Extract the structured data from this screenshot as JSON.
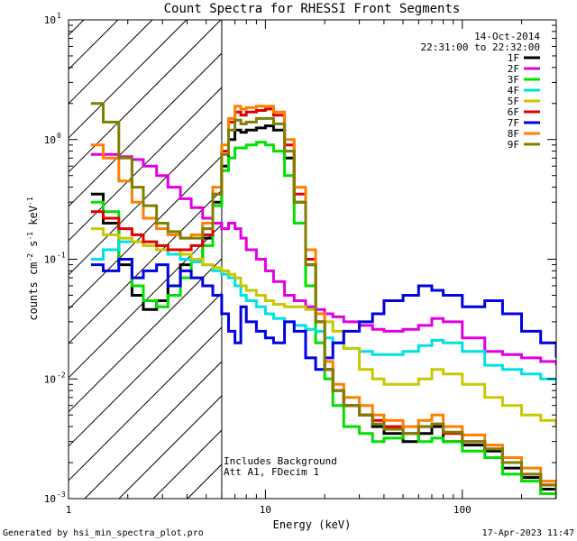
{
  "chart_data": {
    "type": "line",
    "title": "Count Spectra for RHESSI Front Segments",
    "date": "14-Oct-2014",
    "time_range": "22:31:00 to 22:32:00",
    "xlabel": "Energy (keV)",
    "ylabel_parts": [
      "counts cm",
      "-2",
      " s",
      "-1",
      " keV",
      "-1"
    ],
    "x_scale": "log",
    "y_scale": "log",
    "xlim": [
      1,
      300
    ],
    "ylim": [
      0.001,
      10
    ],
    "x_ticks": [
      {
        "value": 1,
        "label": "1"
      },
      {
        "value": 10,
        "label": "10"
      },
      {
        "value": 100,
        "label": "100"
      }
    ],
    "y_ticks": [
      {
        "value": 0.001,
        "base": "10",
        "exp": "-3"
      },
      {
        "value": 0.01,
        "base": "10",
        "exp": "-2"
      },
      {
        "value": 0.1,
        "base": "10",
        "exp": "-1"
      },
      {
        "value": 1,
        "base": "10",
        "exp": "0"
      },
      {
        "value": 10,
        "base": "10",
        "exp": "1"
      }
    ],
    "excluded_region": {
      "x_max": 6,
      "style": "diagonal-hatch"
    },
    "annotations": [
      "Includes Background",
      "Att A1, FDecim 1"
    ],
    "series": [
      {
        "name": "1F",
        "color": "#000000",
        "x": [
          1.3,
          1.5,
          1.8,
          2.1,
          2.4,
          2.8,
          3.2,
          3.7,
          4.2,
          4.8,
          5.4,
          6.0,
          6.5,
          7.0,
          7.5,
          8.0,
          9.0,
          10.0,
          11.0,
          12.5,
          14.0,
          16.0,
          18.0,
          20.0,
          22.0,
          25.0,
          30.0,
          35.0,
          40.0,
          50.0,
          60.0,
          70.0,
          80.0,
          100.0,
          130.0,
          160.0,
          200.0,
          250.0,
          300.0
        ],
        "y": [
          0.35,
          0.2,
          0.09,
          0.05,
          0.038,
          0.045,
          0.06,
          0.09,
          0.1,
          0.15,
          0.3,
          0.6,
          1.0,
          1.2,
          1.15,
          1.2,
          1.25,
          1.3,
          1.2,
          0.7,
          0.3,
          0.09,
          0.03,
          0.012,
          0.008,
          0.006,
          0.005,
          0.004,
          0.0035,
          0.003,
          0.0035,
          0.004,
          0.003,
          0.0028,
          0.0025,
          0.0018,
          0.0015,
          0.0012,
          0.001
        ]
      },
      {
        "name": "2F",
        "color": "#e100e1",
        "x": [
          1.3,
          1.5,
          1.8,
          2.1,
          2.4,
          2.8,
          3.2,
          3.7,
          4.2,
          4.8,
          5.4,
          6.0,
          6.5,
          7.0,
          7.5,
          8.0,
          9.0,
          10.0,
          11.0,
          12.5,
          14.0,
          16.0,
          18.0,
          20.0,
          22.0,
          25.0,
          30.0,
          35.0,
          40.0,
          50.0,
          60.0,
          70.0,
          80.0,
          100.0,
          130.0,
          160.0,
          200.0,
          250.0,
          300.0
        ],
        "y": [
          0.75,
          0.75,
          0.72,
          0.68,
          0.6,
          0.5,
          0.4,
          0.32,
          0.27,
          0.22,
          0.2,
          0.18,
          0.2,
          0.18,
          0.15,
          0.12,
          0.1,
          0.08,
          0.065,
          0.05,
          0.045,
          0.04,
          0.038,
          0.035,
          0.033,
          0.03,
          0.028,
          0.026,
          0.025,
          0.026,
          0.028,
          0.032,
          0.03,
          0.022,
          0.017,
          0.016,
          0.015,
          0.014,
          0.013
        ]
      },
      {
        "name": "3F",
        "color": "#00e100",
        "x": [
          1.3,
          1.5,
          1.8,
          2.1,
          2.4,
          2.8,
          3.2,
          3.7,
          4.2,
          4.8,
          5.4,
          6.0,
          6.5,
          7.0,
          7.5,
          8.0,
          9.0,
          10.0,
          11.0,
          12.5,
          14.0,
          16.0,
          18.0,
          20.0,
          22.0,
          25.0,
          30.0,
          35.0,
          40.0,
          50.0,
          60.0,
          70.0,
          80.0,
          100.0,
          130.0,
          160.0,
          200.0,
          250.0,
          300.0
        ],
        "y": [
          0.3,
          0.25,
          0.1,
          0.06,
          0.045,
          0.04,
          0.05,
          0.07,
          0.1,
          0.13,
          0.28,
          0.55,
          0.7,
          0.85,
          0.85,
          0.9,
          0.95,
          0.9,
          0.8,
          0.5,
          0.2,
          0.06,
          0.02,
          0.01,
          0.006,
          0.004,
          0.0035,
          0.003,
          0.0032,
          0.0035,
          0.003,
          0.0032,
          0.003,
          0.0025,
          0.0022,
          0.0016,
          0.0014,
          0.0011,
          0.001
        ]
      },
      {
        "name": "4F",
        "color": "#00e1e1",
        "x": [
          1.3,
          1.5,
          1.8,
          2.1,
          2.4,
          2.8,
          3.2,
          3.7,
          4.2,
          4.8,
          5.4,
          6.0,
          6.5,
          7.0,
          7.5,
          8.0,
          9.0,
          10.0,
          11.0,
          12.5,
          14.0,
          16.0,
          18.0,
          20.0,
          22.0,
          25.0,
          30.0,
          35.0,
          40.0,
          50.0,
          60.0,
          70.0,
          80.0,
          100.0,
          130.0,
          160.0,
          200.0,
          250.0,
          300.0
        ],
        "y": [
          0.1,
          0.12,
          0.14,
          0.14,
          0.13,
          0.12,
          0.11,
          0.1,
          0.095,
          0.09,
          0.08,
          0.075,
          0.07,
          0.06,
          0.05,
          0.045,
          0.04,
          0.035,
          0.032,
          0.03,
          0.028,
          0.026,
          0.025,
          0.022,
          0.02,
          0.018,
          0.017,
          0.016,
          0.016,
          0.017,
          0.019,
          0.021,
          0.02,
          0.017,
          0.013,
          0.012,
          0.011,
          0.01,
          0.009
        ]
      },
      {
        "name": "5F",
        "color": "#c8c800",
        "x": [
          1.3,
          1.5,
          1.8,
          2.1,
          2.4,
          2.8,
          3.2,
          3.7,
          4.2,
          4.8,
          5.4,
          6.0,
          6.5,
          7.0,
          7.5,
          8.0,
          9.0,
          10.0,
          11.0,
          12.5,
          14.0,
          16.0,
          18.0,
          20.0,
          22.0,
          25.0,
          30.0,
          35.0,
          40.0,
          50.0,
          60.0,
          70.0,
          80.0,
          100.0,
          130.0,
          160.0,
          200.0,
          250.0,
          300.0
        ],
        "y": [
          0.18,
          0.16,
          0.15,
          0.14,
          0.13,
          0.12,
          0.12,
          0.11,
          0.1,
          0.09,
          0.085,
          0.08,
          0.075,
          0.07,
          0.06,
          0.055,
          0.05,
          0.045,
          0.042,
          0.04,
          0.04,
          0.038,
          0.035,
          0.03,
          0.025,
          0.018,
          0.012,
          0.01,
          0.009,
          0.009,
          0.01,
          0.012,
          0.011,
          0.009,
          0.007,
          0.006,
          0.005,
          0.0045,
          0.004
        ]
      },
      {
        "name": "6F",
        "color": "#e10000",
        "x": [
          1.3,
          1.5,
          1.8,
          2.1,
          2.4,
          2.8,
          3.2,
          3.7,
          4.2,
          4.8,
          5.4,
          6.0,
          6.5,
          7.0,
          7.5,
          8.0,
          9.0,
          10.0,
          11.0,
          12.5,
          14.0,
          16.0,
          18.0,
          20.0,
          22.0,
          25.0,
          30.0,
          35.0,
          40.0,
          50.0,
          60.0,
          70.0,
          80.0,
          100.0,
          130.0,
          160.0,
          200.0,
          250.0,
          300.0
        ],
        "y": [
          0.25,
          0.22,
          0.18,
          0.16,
          0.14,
          0.13,
          0.12,
          0.12,
          0.13,
          0.16,
          0.35,
          0.8,
          1.4,
          1.7,
          1.6,
          1.7,
          1.75,
          1.8,
          1.6,
          0.9,
          0.35,
          0.1,
          0.03,
          0.012,
          0.008,
          0.006,
          0.005,
          0.0045,
          0.004,
          0.0035,
          0.004,
          0.0042,
          0.0035,
          0.003,
          0.0026,
          0.002,
          0.0016,
          0.0013,
          0.0011
        ]
      },
      {
        "name": "7F",
        "color": "#0000e1",
        "x": [
          1.3,
          1.5,
          1.8,
          2.1,
          2.4,
          2.8,
          3.2,
          3.7,
          4.2,
          4.8,
          5.4,
          6.0,
          6.5,
          7.0,
          7.5,
          8.0,
          9.0,
          10.0,
          11.0,
          12.5,
          14.0,
          16.0,
          18.0,
          20.0,
          22.0,
          25.0,
          30.0,
          35.0,
          40.0,
          50.0,
          60.0,
          70.0,
          80.0,
          100.0,
          130.0,
          160.0,
          200.0,
          250.0,
          300.0
        ],
        "y": [
          0.09,
          0.08,
          0.1,
          0.07,
          0.08,
          0.09,
          0.06,
          0.08,
          0.07,
          0.06,
          0.05,
          0.035,
          0.025,
          0.02,
          0.04,
          0.03,
          0.025,
          0.022,
          0.02,
          0.03,
          0.025,
          0.015,
          0.012,
          0.015,
          0.02,
          0.025,
          0.03,
          0.035,
          0.045,
          0.05,
          0.06,
          0.055,
          0.05,
          0.04,
          0.045,
          0.035,
          0.025,
          0.02,
          0.015
        ]
      },
      {
        "name": "8F",
        "color": "#ff7f00",
        "x": [
          1.3,
          1.5,
          1.8,
          2.1,
          2.4,
          2.8,
          3.2,
          3.7,
          4.2,
          4.8,
          5.4,
          6.0,
          6.5,
          7.0,
          7.5,
          8.0,
          9.0,
          10.0,
          11.0,
          12.5,
          14.0,
          16.0,
          18.0,
          20.0,
          22.0,
          25.0,
          30.0,
          35.0,
          40.0,
          50.0,
          60.0,
          70.0,
          80.0,
          100.0,
          130.0,
          160.0,
          200.0,
          250.0,
          300.0
        ],
        "y": [
          0.9,
          0.7,
          0.45,
          0.3,
          0.22,
          0.18,
          0.16,
          0.15,
          0.16,
          0.2,
          0.4,
          0.9,
          1.5,
          1.9,
          1.8,
          1.85,
          1.9,
          1.9,
          1.7,
          1.0,
          0.4,
          0.12,
          0.035,
          0.014,
          0.009,
          0.007,
          0.006,
          0.005,
          0.0045,
          0.004,
          0.0045,
          0.005,
          0.004,
          0.0034,
          0.0028,
          0.0022,
          0.0018,
          0.0014,
          0.0012
        ]
      },
      {
        "name": "9F",
        "color": "#7f7f00",
        "x": [
          1.3,
          1.5,
          1.8,
          2.1,
          2.4,
          2.8,
          3.2,
          3.7,
          4.2,
          4.8,
          5.4,
          6.0,
          6.5,
          7.0,
          7.5,
          8.0,
          9.0,
          10.0,
          11.0,
          12.5,
          14.0,
          16.0,
          18.0,
          20.0,
          22.0,
          25.0,
          30.0,
          35.0,
          40.0,
          50.0,
          60.0,
          70.0,
          80.0,
          100.0,
          130.0,
          160.0,
          200.0,
          250.0,
          300.0
        ],
        "y": [
          2.0,
          1.4,
          0.7,
          0.4,
          0.28,
          0.2,
          0.17,
          0.15,
          0.15,
          0.18,
          0.35,
          0.75,
          1.2,
          1.45,
          1.35,
          1.4,
          1.5,
          1.5,
          1.35,
          0.8,
          0.3,
          0.09,
          0.03,
          0.012,
          0.008,
          0.006,
          0.005,
          0.0042,
          0.0038,
          0.0035,
          0.004,
          0.0042,
          0.0036,
          0.003,
          0.0026,
          0.002,
          0.0016,
          0.0013,
          0.0011
        ]
      }
    ]
  },
  "footer": {
    "generated_by": "Generated by hsi_min_spectra_plot.pro",
    "timestamp": "17-Apr-2023 11:47"
  }
}
